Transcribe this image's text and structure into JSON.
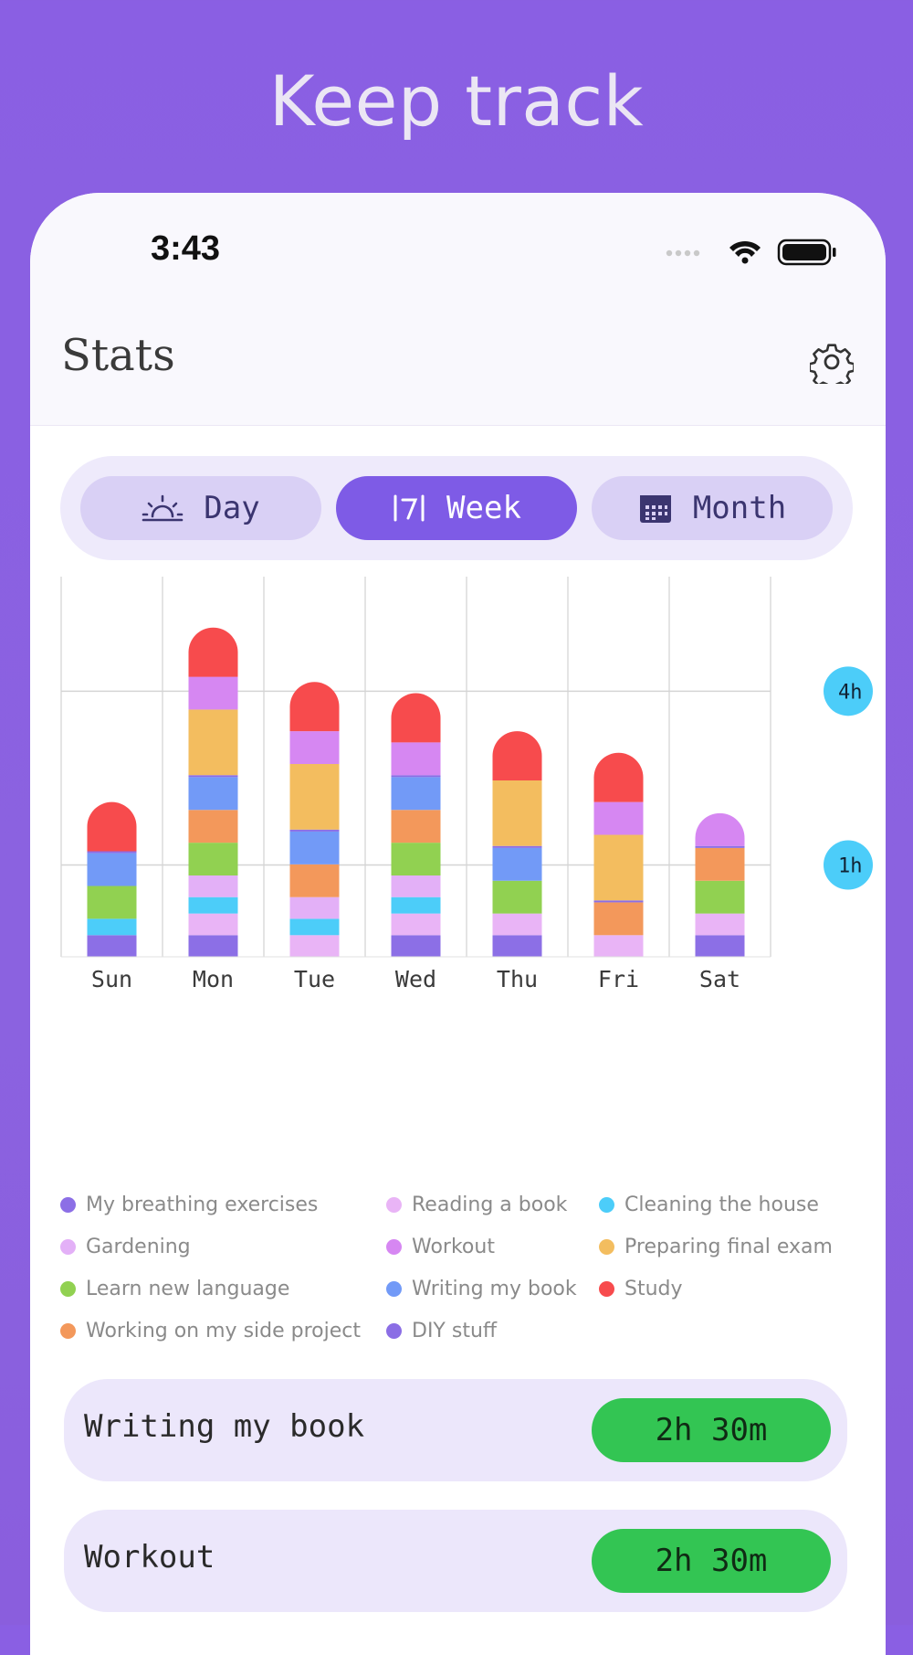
{
  "headline": "Keep track",
  "status_bar": {
    "time": "3:43"
  },
  "header": {
    "title": "Stats"
  },
  "segments": [
    {
      "label": "Day",
      "icon": "sunrise-icon",
      "active": false
    },
    {
      "label": "Week",
      "icon": "week-icon",
      "active": true
    },
    {
      "label": "Month",
      "icon": "calendar-icon",
      "active": false
    }
  ],
  "colors": {
    "purple_bg": "#8a5fe3",
    "breathing": "#8c6fe6",
    "reading": "#e9b4f6",
    "cleaning": "#4ccdf9",
    "gardening": "#e3b0f7",
    "workout": "#d687f2",
    "exam": "#f3bd5f",
    "language": "#91d151",
    "writing": "#729af7",
    "study": "#f74b4d",
    "side_project": "#f3985b",
    "diy": "#8b6ee5",
    "green_pill": "#33c553"
  },
  "chart_data": {
    "type": "bar",
    "stacked": true,
    "categories": [
      "Sun",
      "Mon",
      "Tue",
      "Wed",
      "Thu",
      "Fri",
      "Sat"
    ],
    "reference_lines": [
      "4h",
      "1h"
    ],
    "series": [
      {
        "name": "My breathing exercises",
        "color": "#8c6fe6",
        "values": [
          0.33,
          0.33,
          0,
          0.33,
          0.33,
          0,
          0.33
        ]
      },
      {
        "name": "Reading a book",
        "color": "#e9b4f6",
        "values": [
          0,
          0.33,
          0.33,
          0.33,
          0.33,
          0.33,
          0.33
        ]
      },
      {
        "name": "Cleaning the house",
        "color": "#4ccdf9",
        "values": [
          0.25,
          0.25,
          0.25,
          0.25,
          0,
          0,
          0
        ]
      },
      {
        "name": "Gardening",
        "color": "#e3b0f7",
        "values": [
          0,
          0.33,
          0.33,
          0.33,
          0,
          0,
          0
        ]
      },
      {
        "name": "Learn new language",
        "color": "#91d151",
        "values": [
          0.5,
          0.5,
          0,
          0.5,
          0.5,
          0,
          0.5
        ]
      },
      {
        "name": "Working on my side project",
        "color": "#f3985b",
        "values": [
          0,
          0.5,
          0.5,
          0.5,
          0,
          0.5,
          0.5
        ]
      },
      {
        "name": "Writing my book",
        "color": "#729af7",
        "values": [
          0.5,
          0.5,
          0.5,
          0.5,
          0.5,
          0,
          0
        ]
      },
      {
        "name": "DIY stuff",
        "color": "#8b6ee5",
        "values": [
          0.03,
          0.03,
          0.03,
          0.03,
          0.03,
          0.03,
          0.03
        ]
      },
      {
        "name": "Preparing final exam",
        "color": "#f3bd5f",
        "values": [
          0,
          1,
          1,
          0,
          1,
          1,
          0
        ]
      },
      {
        "name": "Workout",
        "color": "#d687f2",
        "values": [
          0,
          0.5,
          0.5,
          0.5,
          0,
          0.5,
          0.5
        ]
      },
      {
        "name": "Study",
        "color": "#f74b4d",
        "values": [
          0.75,
          0.75,
          0.75,
          0.75,
          0.75,
          0.75,
          0
        ]
      }
    ],
    "ylim": [
      0,
      5.1
    ]
  },
  "legend": [
    {
      "label": "My breathing exercises",
      "color": "#8c6fe6"
    },
    {
      "label": "Reading a book",
      "color": "#e9b4f6"
    },
    {
      "label": "Cleaning the house",
      "color": "#4ccdf9"
    },
    {
      "label": "Gardening",
      "color": "#e3b0f7"
    },
    {
      "label": "Workout",
      "color": "#d687f2"
    },
    {
      "label": "Preparing final exam",
      "color": "#f3bd5f"
    },
    {
      "label": "Learn new language",
      "color": "#91d151"
    },
    {
      "label": "Writing my book",
      "color": "#729af7"
    },
    {
      "label": "Study",
      "color": "#f74b4d"
    },
    {
      "label": "Working on my side project",
      "color": "#f3985b"
    },
    {
      "label": "DIY stuff",
      "color": "#8b6ee5"
    }
  ],
  "activities": [
    {
      "name": "Writing my book",
      "duration": "2h 30m"
    },
    {
      "name": "Workout",
      "duration": "2h 30m"
    }
  ]
}
